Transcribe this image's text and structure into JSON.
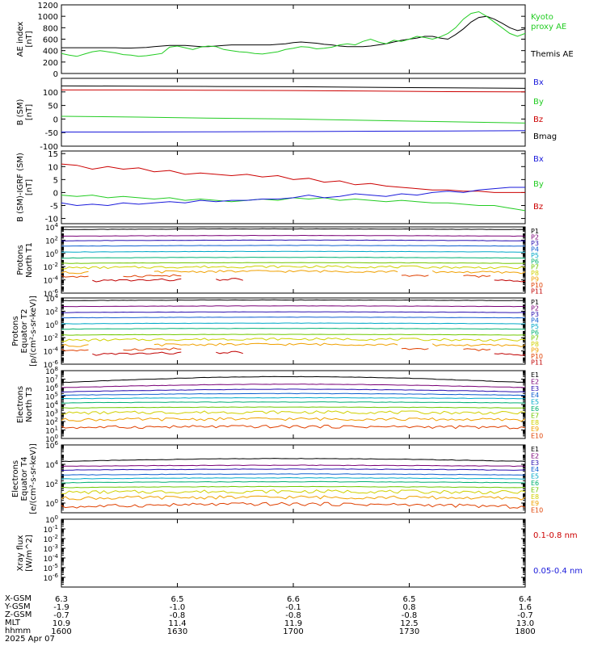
{
  "colors": {
    "black": "#000000",
    "green": "#22cc22",
    "red": "#cc0000",
    "blue": "#1a1adb",
    "p_colors": [
      "#000000",
      "#7a0077",
      "#2a10b0",
      "#1060d0",
      "#00a8c8",
      "#00b070",
      "#70c800",
      "#d0d000",
      "#f0a000",
      "#e04000",
      "#c00000"
    ],
    "e_colors": [
      "#000000",
      "#7a0077",
      "#2a10b0",
      "#1060d0",
      "#00a8c8",
      "#00b070",
      "#70c800",
      "#d0d000",
      "#f0a000",
      "#e04000"
    ]
  },
  "chart_data": [
    {
      "id": "ae",
      "type": "line",
      "ylabel": [
        "AE index",
        "[nT]"
      ],
      "ylim": [
        0,
        1200
      ],
      "yticks": [
        "0",
        "200",
        "400",
        "600",
        "800",
        "1000",
        "1200"
      ],
      "ytick_values": [
        0,
        200,
        400,
        600,
        800,
        1000,
        1200
      ],
      "legend": [
        {
          "name": "Kyoto",
          "name2": "proxy AE",
          "color": "#22cc22"
        },
        {
          "name": "Themis AE",
          "color": "#000000"
        }
      ],
      "x": [
        0,
        1,
        2,
        3,
        4,
        5,
        6,
        7,
        8,
        9,
        10,
        11,
        12,
        13,
        14,
        15,
        16,
        17,
        18,
        19,
        20,
        21,
        22,
        23,
        24,
        25,
        26,
        27,
        28,
        29,
        30,
        31,
        32,
        33,
        34,
        35,
        36,
        37,
        38,
        39,
        40,
        41,
        42,
        43,
        44,
        45,
        46,
        47,
        48,
        49,
        50,
        51,
        52,
        53,
        54,
        55,
        56,
        57,
        58,
        59,
        60
      ],
      "series": [
        {
          "name": "Themis AE",
          "color": "#000000",
          "values": [
            450,
            450,
            450,
            450,
            450,
            450,
            450,
            450,
            445,
            445,
            450,
            455,
            470,
            480,
            490,
            490,
            490,
            480,
            470,
            470,
            480,
            490,
            500,
            500,
            500,
            500,
            500,
            500,
            510,
            520,
            540,
            550,
            540,
            530,
            510,
            500,
            480,
            470,
            470,
            470,
            480,
            500,
            520,
            550,
            580,
            600,
            620,
            650,
            650,
            620,
            600,
            680,
            780,
            900,
            980,
            1000,
            950,
            880,
            800,
            750,
            780
          ]
        },
        {
          "name": "Kyoto proxy AE",
          "color": "#22cc22",
          "values": [
            350,
            320,
            300,
            340,
            380,
            400,
            380,
            360,
            330,
            320,
            300,
            310,
            330,
            350,
            460,
            480,
            450,
            420,
            460,
            480,
            470,
            420,
            400,
            380,
            370,
            350,
            340,
            360,
            380,
            420,
            440,
            470,
            460,
            430,
            440,
            460,
            500,
            520,
            500,
            560,
            600,
            550,
            520,
            580,
            560,
            600,
            650,
            630,
            600,
            640,
            700,
            800,
            950,
            1050,
            1080,
            1000,
            900,
            800,
            700,
            650,
            700
          ]
        }
      ]
    },
    {
      "id": "bsm",
      "type": "line",
      "ylabel": [
        "B (SM)",
        "[nT]"
      ],
      "ylim": [
        -100,
        150
      ],
      "yticks": [
        "-100",
        "-50",
        "0",
        "50",
        "100"
      ],
      "ytick_values": [
        -100,
        -50,
        0,
        50,
        100
      ],
      "legend": [
        {
          "name": "Bx",
          "color": "#1a1adb"
        },
        {
          "name": "By",
          "color": "#22cc22"
        },
        {
          "name": "Bz",
          "color": "#cc0000"
        },
        {
          "name": "Bmag",
          "color": "#000000"
        }
      ],
      "x": [
        0,
        10,
        20,
        30,
        40,
        50,
        60
      ],
      "series": [
        {
          "name": "Bmag",
          "color": "#000000",
          "values": [
            122,
            121,
            120,
            119,
            117,
            115,
            113
          ]
        },
        {
          "name": "Bz",
          "color": "#cc0000",
          "values": [
            107,
            107,
            106,
            105,
            103,
            101,
            100
          ]
        },
        {
          "name": "By",
          "color": "#22cc22",
          "values": [
            10,
            7,
            3,
            0,
            -5,
            -10,
            -15
          ]
        },
        {
          "name": "Bx",
          "color": "#1a1adb",
          "values": [
            -48,
            -48,
            -47,
            -46,
            -45,
            -44,
            -43
          ]
        }
      ]
    },
    {
      "id": "bigrf",
      "type": "line",
      "ylabel": [
        "B (SM)-IGRF (SM)",
        "[nT]"
      ],
      "ylim": [
        -12,
        16
      ],
      "yticks": [
        "-10",
        "-5",
        "0",
        "5",
        "10",
        "15"
      ],
      "ytick_values": [
        -10,
        -5,
        0,
        5,
        10,
        15
      ],
      "legend": [
        {
          "name": "Bx",
          "color": "#1a1adb"
        },
        {
          "name": "By",
          "color": "#22cc22"
        },
        {
          "name": "Bz",
          "color": "#cc0000"
        }
      ],
      "x": [
        0,
        2,
        4,
        6,
        8,
        10,
        12,
        14,
        16,
        18,
        20,
        22,
        24,
        26,
        28,
        30,
        32,
        34,
        36,
        38,
        40,
        42,
        44,
        46,
        48,
        50,
        52,
        54,
        56,
        58,
        60
      ],
      "series": [
        {
          "name": "Bz",
          "color": "#cc0000",
          "values": [
            11,
            10.5,
            9,
            10,
            9,
            9.5,
            8,
            8.5,
            7,
            7.5,
            7,
            6.5,
            7,
            6,
            6.5,
            5,
            5.5,
            4,
            4.5,
            3,
            3.5,
            2.5,
            2,
            1.5,
            1,
            1,
            0.5,
            0.5,
            0,
            0,
            0
          ]
        },
        {
          "name": "By",
          "color": "#22cc22",
          "values": [
            -1,
            -1.5,
            -1,
            -2,
            -1.5,
            -2,
            -2.5,
            -2,
            -3,
            -2.5,
            -3,
            -3.5,
            -3,
            -2.5,
            -3,
            -2,
            -2.5,
            -2,
            -3,
            -2.5,
            -3,
            -3.5,
            -3,
            -3.5,
            -4,
            -4,
            -4.5,
            -5,
            -5,
            -6,
            -7
          ]
        },
        {
          "name": "Bx",
          "color": "#1a1adb",
          "values": [
            -4,
            -5,
            -4.5,
            -5,
            -4,
            -4.5,
            -4,
            -3.5,
            -4,
            -3,
            -3.5,
            -3,
            -3,
            -2.5,
            -2.5,
            -2,
            -1,
            -2,
            -1.5,
            -0.5,
            -1,
            -1.5,
            -0.5,
            -1,
            0,
            0.5,
            0,
            1,
            1.5,
            2,
            2
          ]
        }
      ]
    },
    {
      "id": "pn",
      "type": "line",
      "log": true,
      "ylabel": [
        "Protons",
        "North T1"
      ],
      "ylim_exp": [
        -6,
        4
      ],
      "ytick_exps": [
        -6,
        -4,
        -2,
        0,
        2,
        4
      ],
      "legend": [
        "P1",
        "P2",
        "P3",
        "P4",
        "P5",
        "P6",
        "P7",
        "P8",
        "P9",
        "P10",
        "P11"
      ],
      "levels": [
        [
          3.6,
          3.7
        ],
        [
          2.6,
          2.7
        ],
        [
          1.9,
          2.0
        ],
        [
          1.1,
          1.2
        ],
        [
          0.2,
          0.3
        ],
        [
          -0.7,
          -0.6
        ],
        [
          -1.5,
          -1.4
        ],
        [
          -2.2,
          -2.0
        ],
        [
          -2.9,
          -2.7
        ],
        [
          -3.5,
          -3.3
        ],
        [
          -4.2,
          -3.9
        ]
      ]
    },
    {
      "id": "pe",
      "type": "line",
      "log": true,
      "ylabel": [
        "Protons",
        "Equator T2",
        "[p/(cm²-s-sr-keV)]"
      ],
      "ylim_exp": [
        -6,
        4
      ],
      "ytick_exps": [
        -6,
        -4,
        -2,
        0,
        2,
        4
      ],
      "legend": [
        "P1",
        "P2",
        "P3",
        "P4",
        "P5",
        "P6",
        "P7",
        "P8",
        "P9",
        "P10",
        "P11"
      ],
      "levels": [
        [
          3.6,
          3.7
        ],
        [
          2.7,
          2.8
        ],
        [
          1.8,
          1.9
        ],
        [
          1.0,
          1.1
        ],
        [
          0.1,
          0.2
        ],
        [
          -0.7,
          -0.6
        ],
        [
          -1.6,
          -1.5
        ],
        [
          -2.4,
          -2.2
        ],
        [
          -3.2,
          -3.0
        ],
        [
          -3.9,
          -3.6
        ],
        [
          -4.6,
          -4.2
        ]
      ]
    },
    {
      "id": "en",
      "type": "line",
      "log": true,
      "ylabel": [
        "Electrons",
        "North T3"
      ],
      "ylim_exp": [
        0,
        8
      ],
      "ytick_exps": [
        0,
        1,
        2,
        3,
        4,
        5,
        6,
        7,
        8
      ],
      "legend": [
        "E1",
        "E2",
        "E3",
        "E4",
        "E5",
        "E6",
        "E7",
        "E8",
        "E9",
        "E10"
      ],
      "levels": [
        [
          6.6,
          7.3
        ],
        [
          6.0,
          6.4
        ],
        [
          5.5,
          5.8
        ],
        [
          5.1,
          5.3
        ],
        [
          4.7,
          4.8
        ],
        [
          4.2,
          4.3
        ],
        [
          3.6,
          3.7
        ],
        [
          3.0,
          3.1
        ],
        [
          2.2,
          2.3
        ],
        [
          1.3,
          1.4
        ]
      ]
    },
    {
      "id": "ee",
      "type": "line",
      "log": true,
      "ylabel": [
        "Electrons",
        "Equator T4",
        "[e/(cm²-s-sr-keV)]"
      ],
      "ylim_exp": [
        -1,
        6
      ],
      "ytick_exps": [
        0,
        2,
        4,
        6
      ],
      "legend": [
        "E1",
        "E2",
        "E3",
        "E4",
        "E5",
        "E6",
        "E7",
        "E8",
        "E9",
        "E10"
      ],
      "levels": [
        [
          4.3,
          4.6
        ],
        [
          3.8,
          3.9
        ],
        [
          3.4,
          3.5
        ],
        [
          2.9,
          3.0
        ],
        [
          2.5,
          2.6
        ],
        [
          2.1,
          2.2
        ],
        [
          1.6,
          1.7
        ],
        [
          1.1,
          1.2
        ],
        [
          0.5,
          0.6
        ],
        [
          -0.4,
          -0.1
        ]
      ]
    },
    {
      "id": "xray",
      "type": "line",
      "log": true,
      "ylabel": [
        "Xray flux",
        "[W/m^2]"
      ],
      "ylim_exp": [
        -7,
        0
      ],
      "ytick_exps": [
        -6,
        -5,
        -4,
        -3,
        -2,
        -1,
        0
      ],
      "legend": [
        {
          "name": "0.1-0.8 nm",
          "color": "#cc0000"
        },
        {
          "name": "0.05-0.4 nm",
          "color": "#1a1adb"
        }
      ],
      "series": []
    }
  ],
  "x_axis": {
    "ticks": [
      0,
      15,
      30,
      45,
      60
    ],
    "rows": [
      {
        "label": "X-GSM",
        "values": [
          "6.3",
          "6.5",
          "6.6",
          "6.5",
          "6.4"
        ]
      },
      {
        "label": "Y-GSM",
        "values": [
          "-1.9",
          "-1.0",
          "-0.1",
          "0.8",
          "1.6"
        ]
      },
      {
        "label": "Z-GSM",
        "values": [
          "-0.7",
          "-0.8",
          "-0.8",
          "-0.8",
          "-0.7"
        ]
      },
      {
        "label": "MLT",
        "values": [
          "10.9",
          "11.4",
          "11.9",
          "12.5",
          "13.0"
        ]
      },
      {
        "label": "hhmm",
        "values": [
          "1600",
          "1630",
          "1700",
          "1730",
          "1800"
        ]
      }
    ],
    "date": "2025 Apr 07"
  }
}
